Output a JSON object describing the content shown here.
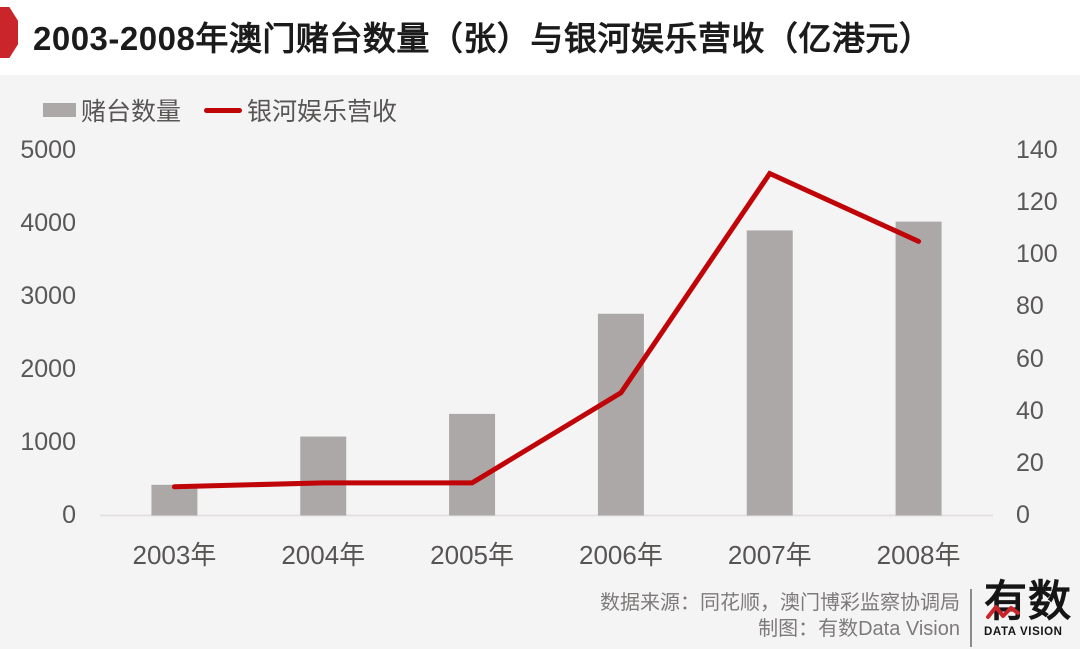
{
  "header": {
    "title": "2003-2008年澳门赌台数量（张）与银河娱乐营收（亿港元）"
  },
  "chart_data": {
    "type": "bar",
    "categories": [
      "2003年",
      "2004年",
      "2005年",
      "2006年",
      "2007年",
      "2008年"
    ],
    "series": [
      {
        "name": "赌台数量",
        "type": "bar",
        "axis": "left",
        "values": [
          420,
          1080,
          1390,
          2760,
          3900,
          4020
        ]
      },
      {
        "name": "银河娱乐营收",
        "type": "line",
        "axis": "right",
        "values": [
          11,
          12.5,
          12.5,
          47,
          131,
          105
        ]
      }
    ],
    "left_axis": {
      "ticks": [
        "5000",
        "4000",
        "3000",
        "2000",
        "1000",
        "0"
      ],
      "max": 5000,
      "min": 0
    },
    "right_axis": {
      "ticks": [
        "140",
        "120",
        "100",
        "80",
        "60",
        "40",
        "20",
        "0"
      ],
      "max": 140,
      "min": 0
    },
    "legend_position": "top-left",
    "grid": "off",
    "colors": {
      "bar": "#ada8a8",
      "line": "#c00508",
      "accent": "#c9252b"
    }
  },
  "footer": {
    "source": "数据来源：同花顺，澳门博彩监察协调局",
    "credit": "制图：有数Data Vision",
    "logo_text": "有数",
    "logo_subtext": "DATA VISION"
  }
}
